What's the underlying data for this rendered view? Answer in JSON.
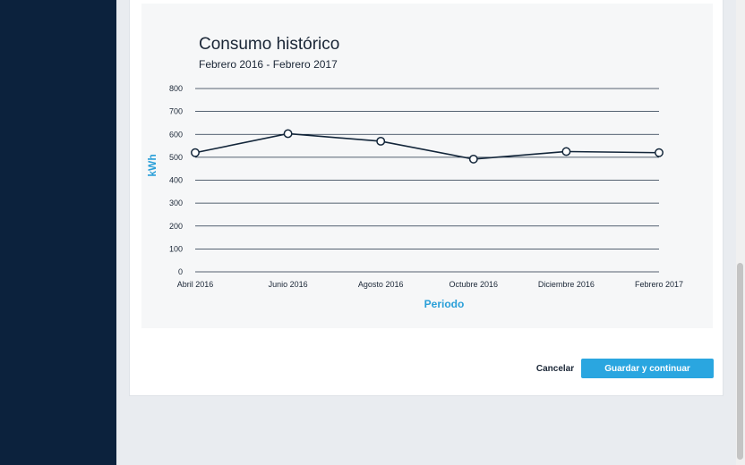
{
  "actions": {
    "cancel_label": "Cancelar",
    "submit_label": "Guardar y continuar"
  },
  "colors": {
    "sidebar": "#0c223d",
    "accent": "#2aa6e0",
    "line": "#13263a"
  },
  "chart_data": {
    "type": "line",
    "title": "Consumo histórico",
    "subtitle": "Febrero 2016 - Febrero 2017",
    "xlabel": "Periodo",
    "ylabel": "kWh",
    "ylim": [
      0,
      800
    ],
    "yticks": [
      0,
      100,
      200,
      300,
      400,
      500,
      600,
      700,
      800
    ],
    "grid": true,
    "categories": [
      "Abril 2016",
      "Junio 2016",
      "Agosto 2016",
      "Octubre 2016",
      "Diciembre 2016",
      "Febrero 2017"
    ],
    "values": [
      520,
      603,
      570,
      492,
      525,
      520
    ]
  }
}
